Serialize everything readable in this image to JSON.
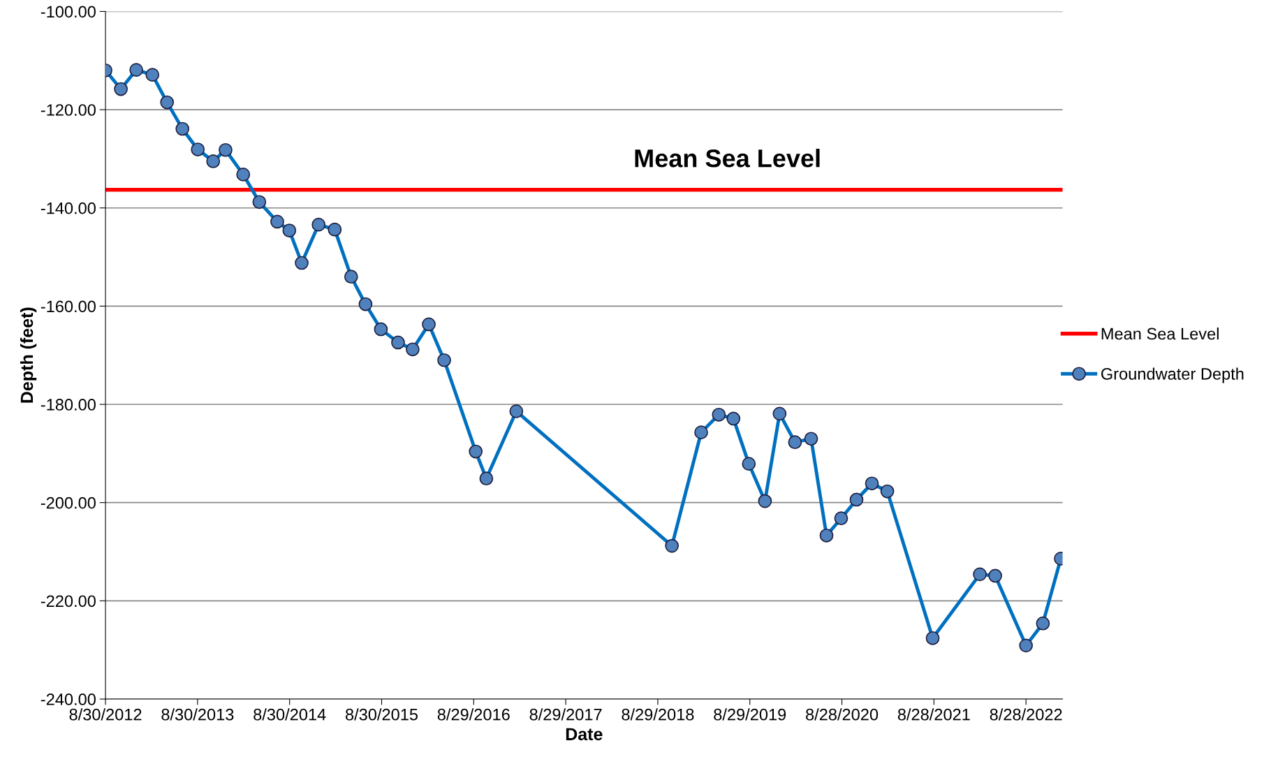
{
  "chart_data": {
    "type": "line",
    "xlabel": "Date",
    "ylabel": "Depth (feet)",
    "x": [
      "2012-08-30",
      "2012-10-30",
      "2012-12-30",
      "2013-03-04",
      "2013-05-01",
      "2013-07-01",
      "2013-08-31",
      "2013-10-31",
      "2013-12-19",
      "2014-02-27",
      "2014-05-02",
      "2014-07-12",
      "2014-08-29",
      "2014-10-17",
      "2014-12-23",
      "2015-02-25",
      "2015-05-01",
      "2015-06-27",
      "2015-08-27",
      "2015-11-03",
      "2015-12-31",
      "2016-03-04",
      "2016-05-04",
      "2016-09-06",
      "2016-10-18",
      "2017-02-14",
      "2018-10-24",
      "2019-02-17",
      "2019-04-28",
      "2019-06-25",
      "2019-08-25",
      "2019-10-28",
      "2019-12-25",
      "2020-02-24",
      "2020-04-28",
      "2020-06-28",
      "2020-08-25",
      "2020-10-25",
      "2020-12-25",
      "2021-02-24",
      "2021-08-23",
      "2022-02-26",
      "2022-04-28",
      "2022-08-28",
      "2022-11-03",
      "2023-01-13"
    ],
    "series": [
      {
        "name": "Groundwater Depth",
        "color": "#0070c0",
        "values": [
          -112.0,
          -115.8,
          -111.9,
          -112.9,
          -118.5,
          -123.9,
          -128.1,
          -130.5,
          -128.2,
          -133.2,
          -138.8,
          -142.8,
          -144.6,
          -151.2,
          -143.4,
          -144.4,
          -154.0,
          -159.6,
          -164.7,
          -167.4,
          -168.8,
          -163.7,
          -171.0,
          -189.6,
          -195.1,
          -181.4,
          -208.8,
          -185.7,
          -182.1,
          -182.9,
          -192.1,
          -199.7,
          -181.9,
          -187.7,
          -187.0,
          -206.7,
          -203.2,
          -199.4,
          -196.1,
          -197.7,
          -227.6,
          -214.6,
          -214.9,
          -229.1,
          -224.6,
          -211.4
        ]
      }
    ],
    "ref_lines": [
      {
        "axis": "y",
        "value": -136.3,
        "label": "Mean Sea Level",
        "color": "#ff0000"
      }
    ],
    "annotations": [
      {
        "text": "Mean Sea Level",
        "x": "2019-06-01",
        "y": -136.3
      }
    ],
    "xlim": [
      "2012-08-30",
      "2023-01-20"
    ],
    "xticks": [
      {
        "value": "2012-08-30",
        "label": "8/30/2012"
      },
      {
        "value": "2013-08-30",
        "label": "8/30/2013"
      },
      {
        "value": "2014-08-30",
        "label": "8/30/2014"
      },
      {
        "value": "2015-08-30",
        "label": "8/30/2015"
      },
      {
        "value": "2016-08-29",
        "label": "8/29/2016"
      },
      {
        "value": "2017-08-29",
        "label": "8/29/2017"
      },
      {
        "value": "2018-08-29",
        "label": "8/29/2018"
      },
      {
        "value": "2019-08-29",
        "label": "8/29/2019"
      },
      {
        "value": "2020-08-28",
        "label": "8/28/2020"
      },
      {
        "value": "2021-08-28",
        "label": "8/28/2021"
      },
      {
        "value": "2022-08-28",
        "label": "8/28/2022"
      }
    ],
    "ylim": [
      -240,
      -100
    ],
    "yticks": [
      {
        "value": -100,
        "label": "-100.00"
      },
      {
        "value": -120,
        "label": "-120.00"
      },
      {
        "value": -140,
        "label": "-140.00"
      },
      {
        "value": -160,
        "label": "-160.00"
      },
      {
        "value": -180,
        "label": "-180.00"
      },
      {
        "value": -200,
        "label": "-200.00"
      },
      {
        "value": -220,
        "label": "-220.00"
      },
      {
        "value": -240,
        "label": "-240.00"
      }
    ],
    "grid": "y",
    "legend": "right",
    "marker": "circle",
    "line_style": "solid"
  }
}
